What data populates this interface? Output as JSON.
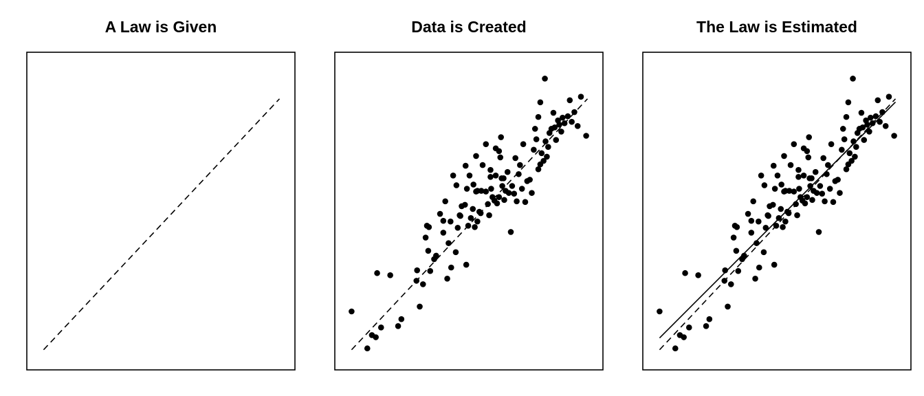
{
  "chart_data": [
    {
      "type": "scatter",
      "title": "A Law is Given",
      "xlabel": "",
      "ylabel": "",
      "xlim": [
        -0.13,
        3.71
      ],
      "ylim": [
        -0.17,
        4.15
      ],
      "axes_shown": false,
      "lines": [
        {
          "name": "true law",
          "style": "dashed",
          "intercept": 0,
          "slope": 1,
          "x_range": [
            0,
            3.6
          ]
        }
      ],
      "points": []
    },
    {
      "type": "scatter",
      "title": "Data is Created",
      "xlabel": "",
      "ylabel": "",
      "xlim": [
        -0.13,
        3.71
      ],
      "ylim": [
        -0.17,
        4.15
      ],
      "axes_shown": false,
      "lines": [
        {
          "name": "true law",
          "style": "dashed",
          "intercept": 0,
          "slope": 1,
          "x_range": [
            0,
            3.6
          ]
        }
      ],
      "points": "shared_points"
    },
    {
      "type": "scatter",
      "title": "The Law is Estimated",
      "xlabel": "",
      "ylabel": "",
      "xlim": [
        -0.13,
        3.71
      ],
      "ylim": [
        -0.17,
        4.15
      ],
      "axes_shown": false,
      "lines": [
        {
          "name": "true law",
          "style": "dashed",
          "intercept": 0,
          "slope": 1,
          "x_range": [
            0,
            3.6
          ]
        },
        {
          "name": "estimated law",
          "style": "solid",
          "intercept": 0.17,
          "slope": 0.94,
          "x_range": [
            0,
            3.6
          ]
        }
      ],
      "points": "shared_points"
    }
  ],
  "shared_points": [
    [
      0,
      0.55
    ],
    [
      0.24,
      0.02
    ],
    [
      0.31,
      0.21
    ],
    [
      0.37,
      0.18
    ],
    [
      0.39,
      1.1
    ],
    [
      0.45,
      0.32
    ],
    [
      0.59,
      1.07
    ],
    [
      0.71,
      0.34
    ],
    [
      0.76,
      0.44
    ],
    [
      0.99,
      0.99
    ],
    [
      1.04,
      0.62
    ],
    [
      1.09,
      0.94
    ],
    [
      1.0,
      1.14
    ],
    [
      1.17,
      1.42
    ],
    [
      1.13,
      1.61
    ],
    [
      1.15,
      1.78
    ],
    [
      1.18,
      1.76
    ],
    [
      1.2,
      1.13
    ],
    [
      1.26,
      1.3
    ],
    [
      1.29,
      1.35
    ],
    [
      1.35,
      1.95
    ],
    [
      1.4,
      1.85
    ],
    [
      1.4,
      1.68
    ],
    [
      1.43,
      2.13
    ],
    [
      1.46,
      1.02
    ],
    [
      1.48,
      1.53
    ],
    [
      1.51,
      1.84
    ],
    [
      1.52,
      1.18
    ],
    [
      1.59,
      1.4
    ],
    [
      1.62,
      1.75
    ],
    [
      1.65,
      1.93
    ],
    [
      1.66,
      1.92
    ],
    [
      1.68,
      2.06
    ],
    [
      1.73,
      2.08
    ],
    [
      1.75,
      1.22
    ],
    [
      1.76,
      2.31
    ],
    [
      1.78,
      1.78
    ],
    [
      1.8,
      2.5
    ],
    [
      1.82,
      1.89
    ],
    [
      1.85,
      2.02
    ],
    [
      1.86,
      2.37
    ],
    [
      1.88,
      1.76
    ],
    [
      1.9,
      2.27
    ],
    [
      1.92,
      1.84
    ],
    [
      1.92,
      2.28
    ],
    [
      1.95,
      1.98
    ],
    [
      1.97,
      1.96
    ],
    [
      1.98,
      2.28
    ],
    [
      2.0,
      2.65
    ],
    [
      2.05,
      2.27
    ],
    [
      2.08,
      2.09
    ],
    [
      2.1,
      1.93
    ],
    [
      2.12,
      2.58
    ],
    [
      2.13,
      2.31
    ],
    [
      2.15,
      2.19
    ],
    [
      2.18,
      2.14
    ],
    [
      2.2,
      2.5
    ],
    [
      2.22,
      2.1
    ],
    [
      2.25,
      2.19
    ],
    [
      2.27,
      2.76
    ],
    [
      2.29,
      2.46
    ],
    [
      2.3,
      2.35
    ],
    [
      2.32,
      2.46
    ],
    [
      2.33,
      2.15
    ],
    [
      2.35,
      2.28
    ],
    [
      2.2,
      2.89
    ],
    [
      2.25,
      2.85
    ],
    [
      2.28,
      3.05
    ],
    [
      2.05,
      2.95
    ],
    [
      2.12,
      2.48
    ],
    [
      2.38,
      2.55
    ],
    [
      2.4,
      2.25
    ],
    [
      2.43,
      1.69
    ],
    [
      2.45,
      2.35
    ],
    [
      2.48,
      2.24
    ],
    [
      2.5,
      2.75
    ],
    [
      2.52,
      2.13
    ],
    [
      2.55,
      2.52
    ],
    [
      2.57,
      2.65
    ],
    [
      2.6,
      2.31
    ],
    [
      2.62,
      2.95
    ],
    [
      2.65,
      2.12
    ],
    [
      2.68,
      2.42
    ],
    [
      2.72,
      2.44
    ],
    [
      2.75,
      2.25
    ],
    [
      2.78,
      2.87
    ],
    [
      2.8,
      3.17
    ],
    [
      2.82,
      3.02
    ],
    [
      2.85,
      2.59
    ],
    [
      2.88,
      2.66
    ],
    [
      2.9,
      2.82
    ],
    [
      2.93,
      2.71
    ],
    [
      2.96,
      2.99
    ],
    [
      2.98,
      2.77
    ],
    [
      3.0,
      2.91
    ],
    [
      3.02,
      3.11
    ],
    [
      3.05,
      3.17
    ],
    [
      3.08,
      3.4
    ],
    [
      3.1,
      3.19
    ],
    [
      3.12,
      3.01
    ],
    [
      3.15,
      3.29
    ],
    [
      3.17,
      3.23
    ],
    [
      3.2,
      3.13
    ],
    [
      3.22,
      3.33
    ],
    [
      3.25,
      3.25
    ],
    [
      3.3,
      3.35
    ],
    [
      3.33,
      3.58
    ],
    [
      3.36,
      3.27
    ],
    [
      3.4,
      3.41
    ],
    [
      3.45,
      3.21
    ],
    [
      3.5,
      3.63
    ],
    [
      3.58,
      3.07
    ],
    [
      2.85,
      3.34
    ],
    [
      2.88,
      3.55
    ],
    [
      2.95,
      3.89
    ],
    [
      1.9,
      2.78
    ],
    [
      1.74,
      2.64
    ],
    [
      1.6,
      2.36
    ],
    [
      1.55,
      2.5
    ]
  ]
}
